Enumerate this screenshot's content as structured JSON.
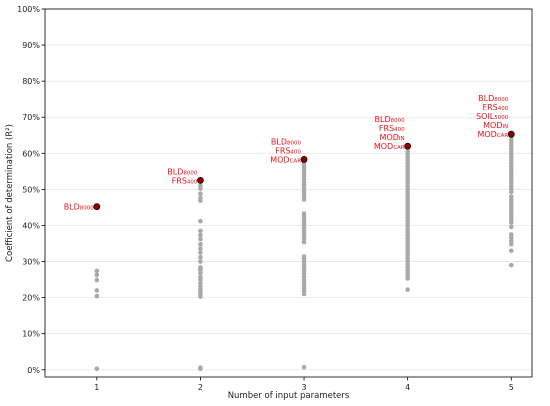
{
  "chart_data": {
    "type": "scatter",
    "xlabel": "Number of input parameters",
    "ylabel": "Coefficient of determination (R²)",
    "x_ticks": [
      "1",
      "2",
      "3",
      "4",
      "5"
    ],
    "y_ticks": [
      "0%",
      "10%",
      "20%",
      "30%",
      "40%",
      "50%",
      "60%",
      "70%",
      "80%",
      "90%",
      "100%"
    ],
    "xlim": [
      0.5,
      5.2
    ],
    "ylim": [
      -2,
      100
    ],
    "grid": "horizontal",
    "colors": {
      "points": "#a9a9a9",
      "best": "#8b0000",
      "annotation": "#e8131b"
    },
    "series": [
      {
        "x": 1,
        "values": [
          45.2,
          27.4,
          26.3,
          24.9,
          22.0,
          20.4,
          0.3
        ]
      },
      {
        "x": 2,
        "values": [
          52.5,
          51.0,
          50.2,
          48.8,
          47.6,
          46.9,
          41.2,
          38.5,
          37.3,
          36.2,
          34.8,
          33.6,
          32.5,
          31.2,
          30.0,
          28.4,
          28.0,
          27.6,
          26.8,
          25.7,
          25.0,
          24.0,
          23.2,
          22.4,
          21.6,
          20.9,
          20.3,
          0.6,
          0.3
        ]
      },
      {
        "x": 3,
        "values": [
          58.3,
          57.5,
          56.8,
          56.0,
          55.2,
          54.4,
          53.6,
          52.8,
          52.0,
          51.2,
          50.4,
          49.6,
          48.8,
          48.0,
          47.2,
          43.3,
          42.6,
          41.8,
          41.0,
          40.2,
          39.4,
          38.6,
          37.8,
          37.0,
          36.2,
          35.4,
          31.4,
          30.6,
          29.8,
          29.0,
          28.2,
          27.4,
          26.6,
          25.8,
          25.0,
          24.2,
          23.4,
          22.6,
          21.8,
          21.0,
          0.7
        ]
      },
      {
        "x": 4,
        "values": [
          62.0,
          61.3,
          60.5,
          59.7,
          58.9,
          58.1,
          57.3,
          56.5,
          55.7,
          54.9,
          54.1,
          53.3,
          52.5,
          51.7,
          50.9,
          50.1,
          49.3,
          48.5,
          47.7,
          46.9,
          46.1,
          45.3,
          44.5,
          43.7,
          42.9,
          42.1,
          41.3,
          40.5,
          39.7,
          38.9,
          38.1,
          37.3,
          36.5,
          35.7,
          34.9,
          34.1,
          33.3,
          32.5,
          31.7,
          30.9,
          30.1,
          29.3,
          28.5,
          27.7,
          26.9,
          26.1,
          25.3,
          22.2
        ]
      },
      {
        "x": 5,
        "values": [
          65.3,
          64.5,
          63.7,
          62.9,
          62.1,
          61.3,
          60.5,
          59.7,
          58.9,
          58.1,
          57.3,
          56.5,
          55.7,
          54.9,
          54.1,
          53.3,
          52.5,
          51.7,
          50.9,
          50.1,
          49.3,
          48.0,
          47.2,
          46.4,
          45.6,
          44.8,
          44.0,
          43.2,
          42.4,
          41.6,
          40.8,
          39.6,
          37.5,
          36.6,
          35.7,
          34.8,
          33.0,
          29.0
        ]
      }
    ],
    "best_points": [
      {
        "x": 1,
        "y": 45.2,
        "label_lines": [
          [
            [
              "BLD",
              ""
            ],
            [
              "8000",
              "sub"
            ]
          ]
        ]
      },
      {
        "x": 2,
        "y": 52.5,
        "label_lines": [
          [
            [
              "BLD",
              ""
            ],
            [
              "8000",
              "sub"
            ]
          ],
          [
            [
              "FRS",
              ""
            ],
            [
              "400",
              "sub"
            ]
          ]
        ]
      },
      {
        "x": 3,
        "y": 58.3,
        "label_lines": [
          [
            [
              "BLD",
              ""
            ],
            [
              "8000",
              "sub"
            ]
          ],
          [
            [
              "FRS",
              ""
            ],
            [
              "400",
              "sub"
            ]
          ],
          [
            [
              "MOD",
              ""
            ],
            [
              "CAR",
              "sub"
            ]
          ]
        ]
      },
      {
        "x": 4,
        "y": 62.0,
        "label_lines": [
          [
            [
              "BLD",
              ""
            ],
            [
              "8000",
              "sub"
            ]
          ],
          [
            [
              "FRS",
              ""
            ],
            [
              "400",
              "sub"
            ]
          ],
          [
            [
              "MOD",
              ""
            ],
            [
              "IN",
              "sub"
            ]
          ],
          [
            [
              "MOD",
              ""
            ],
            [
              "CAR",
              "sub"
            ]
          ]
        ]
      },
      {
        "x": 5,
        "y": 65.3,
        "label_lines": [
          [
            [
              "BLD",
              ""
            ],
            [
              "8000",
              "sub"
            ]
          ],
          [
            [
              "FRS",
              ""
            ],
            [
              "400",
              "sub"
            ]
          ],
          [
            [
              "SOIL",
              ""
            ],
            [
              "5000",
              "sub"
            ]
          ],
          [
            [
              "MOD",
              ""
            ],
            [
              "IN",
              "sub"
            ]
          ],
          [
            [
              "MOD",
              ""
            ],
            [
              "CAR",
              "sub"
            ]
          ]
        ]
      }
    ]
  }
}
